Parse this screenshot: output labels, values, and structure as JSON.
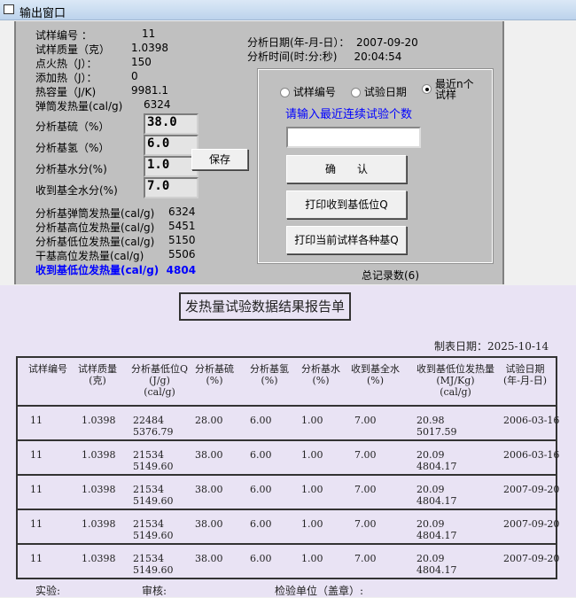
{
  "window": {
    "title": "输出窗口",
    "icon": "window-icon"
  },
  "info": [
    {
      "label": "试样编号 ：",
      "value": "11"
    },
    {
      "label": "试样质量（克）",
      "value": "1.0398"
    },
    {
      "label": "点火热（J）：",
      "value": "150"
    },
    {
      "label": "添加热（J）：",
      "value": "0"
    },
    {
      "label": "热容量（J/K)",
      "value": "9981.1"
    },
    {
      "label": "弹筒发热量(cal/g)",
      "value": "6324"
    }
  ],
  "inputs": [
    {
      "label": "分析基硫（%）",
      "value": "38.0"
    },
    {
      "label": "分析基氢（%）",
      "value": "6.0"
    },
    {
      "label": "分析基水分(%)",
      "value": "1.0"
    },
    {
      "label": "收到基全水分(%)",
      "value": "7.0"
    }
  ],
  "save_label": "保存",
  "results": [
    {
      "label": "分析基弹筒发热量(cal/g)",
      "value": "6324"
    },
    {
      "label": "分析基高位发热量(cal/g)",
      "value": "5451"
    },
    {
      "label": "分析基低位发热量(cal/g)",
      "value": "5150"
    },
    {
      "label": "干基高位发热量(cal/g)",
      "value": "5506"
    }
  ],
  "highlight": {
    "label": "收到基低位发热量(cal/g)",
    "value": "4804",
    "color": "#0000ff"
  },
  "analysis": {
    "date_label": "分析日期(年-月-日）：",
    "date": "2007-09-20",
    "time_label": "分析时间(时:分:秒)",
    "time": "20:04:54"
  },
  "query": {
    "radios": [
      {
        "label": "试样编号",
        "checked": false
      },
      {
        "label": "试验日期",
        "checked": false
      },
      {
        "label": "最近n个试样",
        "checked": true
      }
    ],
    "prompt": "请输入最近连续试验个数",
    "input_value": "",
    "confirm": "确　　认",
    "print_low": "打印收到基低位Q",
    "print_all": "打印当前试样各种基Q",
    "total": "总记录数(6)"
  },
  "report": {
    "title": "发热量试验数据结果报告单",
    "date": "制表日期：2025-10-14",
    "headers": [
      "试样编号",
      "试样质量\n(克)",
      "分析基低位Q\n(J/g)\n(cal/g)",
      "分析基硫\n(%)",
      "分析基氢\n(%)",
      "分析基水\n(%)",
      "收到基全水\n(%)",
      "收到基低位发热量\n(MJ/Kg)\n(cal/g)",
      "试验日期\n(年-月-日)"
    ],
    "rows": [
      [
        "11",
        "1.0398",
        "22484\n5376.79",
        "28.00",
        "6.00",
        "1.00",
        "7.00",
        "20.98\n5017.59",
        "2006-03-16"
      ],
      [
        "11",
        "1.0398",
        "21534\n5149.60",
        "38.00",
        "6.00",
        "1.00",
        "7.00",
        "20.09\n4804.17",
        "2006-03-16"
      ],
      [
        "11",
        "1.0398",
        "21534\n5149.60",
        "38.00",
        "6.00",
        "1.00",
        "7.00",
        "20.09\n4804.17",
        "2007-09-20"
      ],
      [
        "11",
        "1.0398",
        "21534\n5149.60",
        "38.00",
        "6.00",
        "1.00",
        "7.00",
        "20.09\n4804.17",
        "2007-09-20"
      ],
      [
        "11",
        "1.0398",
        "21534\n5149.60",
        "38.00",
        "6.00",
        "1.00",
        "7.00",
        "20.09\n4804.17",
        "2007-09-20"
      ]
    ],
    "footer": [
      "实验:",
      "审核:",
      "检验单位（盖章）:"
    ]
  }
}
